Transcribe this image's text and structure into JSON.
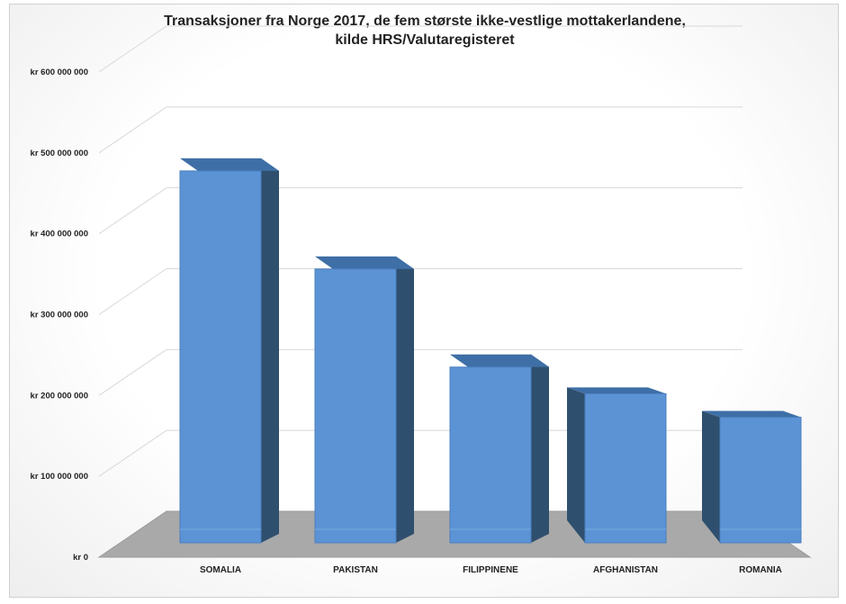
{
  "chart_data": {
    "type": "bar",
    "title": "Transaksjoner fra Norge 2017, de fem største ikke-vestlige mottakerlandene,",
    "subtitle": "kilde HRS/Valutaregisteret",
    "categories": [
      "SOMALIA",
      "PAKISTAN",
      "FILIPPINENE",
      "AFGHANISTAN",
      "ROMANIA"
    ],
    "values": [
      490000000,
      365000000,
      240000000,
      190000000,
      160000000
    ],
    "ylim": [
      0,
      600000000
    ],
    "yticks": [
      {
        "value": 0,
        "label": "kr 0"
      },
      {
        "value": 100000000,
        "label": "kr 100 000 000"
      },
      {
        "value": 200000000,
        "label": "kr 200 000 000"
      },
      {
        "value": 300000000,
        "label": "kr 300 000 000"
      },
      {
        "value": 400000000,
        "label": "kr 400 000 000"
      },
      {
        "value": 500000000,
        "label": "kr 500 000 000"
      },
      {
        "value": 600000000,
        "label": "kr 600 000 000"
      }
    ],
    "grid": true,
    "style": "3d-column",
    "colors": {
      "bar_front": "#5b93d5",
      "bar_side": "#2f4f6e",
      "bar_top": "#3e6fa6",
      "floor": "#a9a9a9"
    }
  }
}
